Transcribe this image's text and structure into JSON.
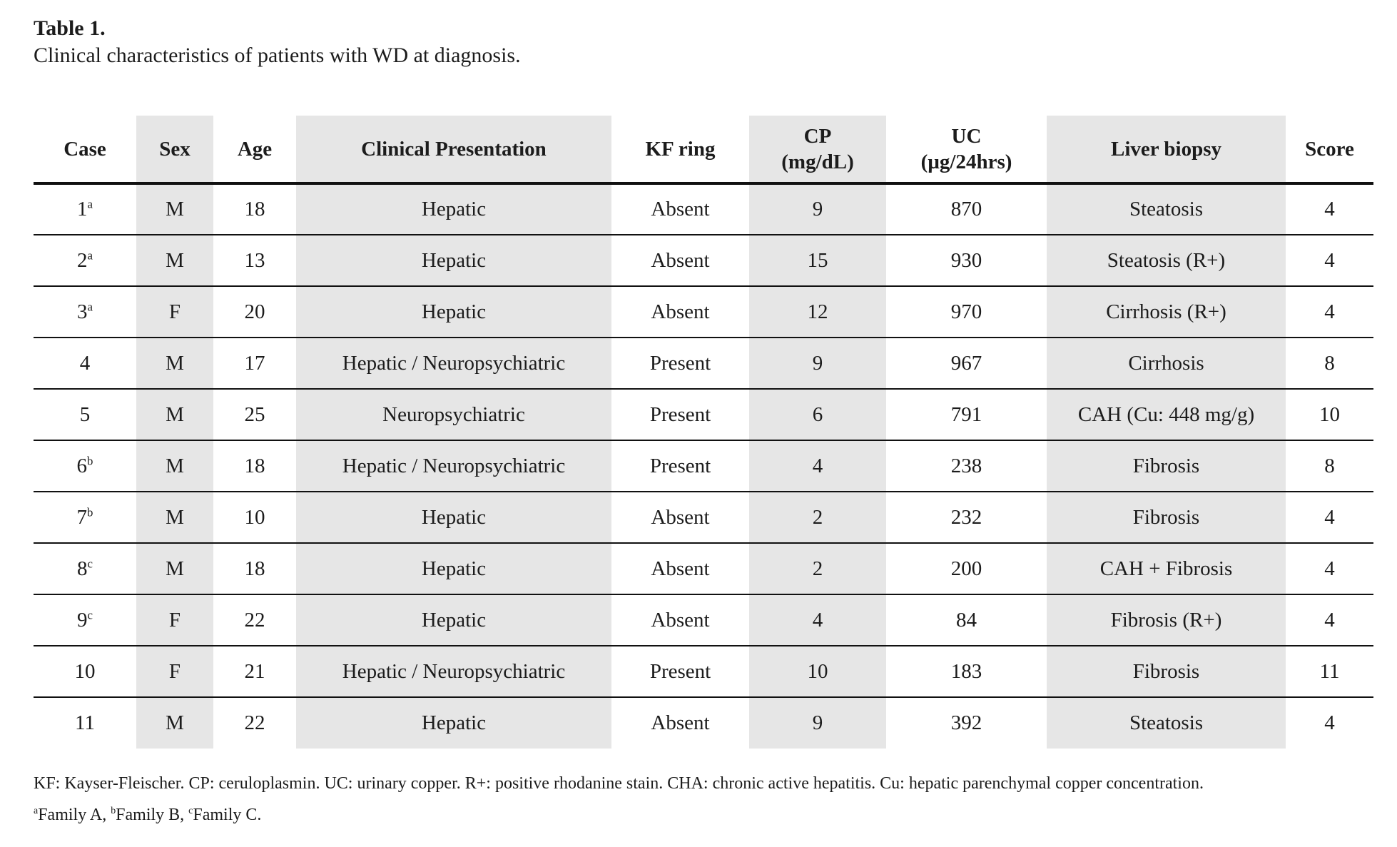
{
  "title": "Table 1.",
  "subtitle": "Clinical characteristics of patients with WD at diagnosis.",
  "table": {
    "columns": [
      {
        "key": "case",
        "lines": [
          "Case"
        ],
        "shaded": false
      },
      {
        "key": "sex",
        "lines": [
          "Sex"
        ],
        "shaded": true
      },
      {
        "key": "age",
        "lines": [
          "Age"
        ],
        "shaded": false
      },
      {
        "key": "presentation",
        "lines": [
          "Clinical Presentation"
        ],
        "shaded": true
      },
      {
        "key": "kf_ring",
        "lines": [
          "KF ring"
        ],
        "shaded": false
      },
      {
        "key": "cp",
        "lines": [
          "CP",
          "(mg/dL)"
        ],
        "shaded": true
      },
      {
        "key": "uc",
        "lines": [
          "UC",
          "(µg/24hrs)"
        ],
        "shaded": false
      },
      {
        "key": "liver_biopsy",
        "lines": [
          "Liver biopsy"
        ],
        "shaded": true
      },
      {
        "key": "score",
        "lines": [
          "Score"
        ],
        "shaded": false
      }
    ],
    "rows": [
      {
        "case": "1",
        "case_sup": "a",
        "sex": "M",
        "age": "18",
        "presentation": "Hepatic",
        "kf_ring": "Absent",
        "cp": "9",
        "uc": "870",
        "liver_biopsy": "Steatosis",
        "score": "4"
      },
      {
        "case": "2",
        "case_sup": "a",
        "sex": "M",
        "age": "13",
        "presentation": "Hepatic",
        "kf_ring": "Absent",
        "cp": "15",
        "uc": "930",
        "liver_biopsy": "Steatosis (R+)",
        "score": "4"
      },
      {
        "case": "3",
        "case_sup": "a",
        "sex": "F",
        "age": "20",
        "presentation": "Hepatic",
        "kf_ring": "Absent",
        "cp": "12",
        "uc": "970",
        "liver_biopsy": "Cirrhosis (R+)",
        "score": "4"
      },
      {
        "case": "4",
        "case_sup": "",
        "sex": "M",
        "age": "17",
        "presentation": "Hepatic / Neuropsychiatric",
        "kf_ring": "Present",
        "cp": "9",
        "uc": "967",
        "liver_biopsy": "Cirrhosis",
        "score": "8"
      },
      {
        "case": "5",
        "case_sup": "",
        "sex": "M",
        "age": "25",
        "presentation": "Neuropsychiatric",
        "kf_ring": "Present",
        "cp": "6",
        "uc": "791",
        "liver_biopsy": "CAH (Cu: 448 mg/g)",
        "score": "10"
      },
      {
        "case": "6",
        "case_sup": "b",
        "sex": "M",
        "age": "18",
        "presentation": "Hepatic / Neuropsychiatric",
        "kf_ring": "Present",
        "cp": "4",
        "uc": "238",
        "liver_biopsy": "Fibrosis",
        "score": "8"
      },
      {
        "case": "7",
        "case_sup": "b",
        "sex": "M",
        "age": "10",
        "presentation": "Hepatic",
        "kf_ring": "Absent",
        "cp": "2",
        "uc": "232",
        "liver_biopsy": "Fibrosis",
        "score": "4"
      },
      {
        "case": "8",
        "case_sup": "c",
        "sex": "M",
        "age": "18",
        "presentation": "Hepatic",
        "kf_ring": "Absent",
        "cp": "2",
        "uc": "200",
        "liver_biopsy": "CAH + Fibrosis",
        "score": "4"
      },
      {
        "case": "9",
        "case_sup": "c",
        "sex": "F",
        "age": "22",
        "presentation": "Hepatic",
        "kf_ring": "Absent",
        "cp": "4",
        "uc": "84",
        "liver_biopsy": "Fibrosis (R+)",
        "score": "4"
      },
      {
        "case": "10",
        "case_sup": "",
        "sex": "F",
        "age": "21",
        "presentation": "Hepatic / Neuropsychiatric",
        "kf_ring": "Present",
        "cp": "10",
        "uc": "183",
        "liver_biopsy": "Fibrosis",
        "score": "11"
      },
      {
        "case": "11",
        "case_sup": "",
        "sex": "M",
        "age": "22",
        "presentation": "Hepatic",
        "kf_ring": "Absent",
        "cp": "9",
        "uc": "392",
        "liver_biopsy": "Steatosis",
        "score": "4"
      }
    ]
  },
  "footnotes": {
    "abbreviations": "KF: Kayser-Fleischer. CP: ceruloplasmin. UC: urinary copper. R+: positive rhodanine stain. CHA: chronic active hepatitis. Cu: hepatic parenchymal copper concentration.",
    "families": [
      {
        "sup": "a",
        "text": "Family A, "
      },
      {
        "sup": "b",
        "text": "Family B, "
      },
      {
        "sup": "c",
        "text": "Family C."
      }
    ]
  },
  "colors": {
    "column_shading": "#e6e6e6",
    "text": "#1c1c1c",
    "rule": "#111111"
  }
}
